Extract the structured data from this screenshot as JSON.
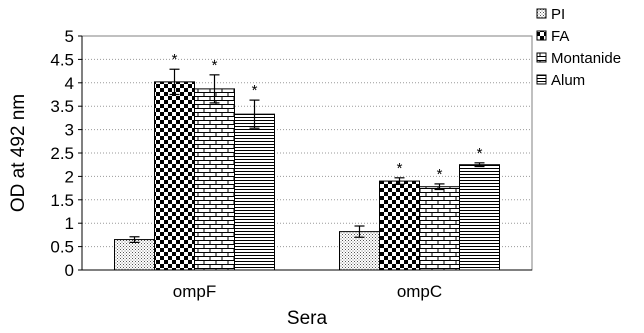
{
  "chart_data": {
    "type": "bar",
    "categories": [
      "ompF",
      "ompC"
    ],
    "series": [
      {
        "name": "PI",
        "values": [
          0.65,
          0.82
        ],
        "errors": [
          0.06,
          0.12
        ],
        "significant": [
          false,
          false
        ],
        "pattern": "dots"
      },
      {
        "name": "FA",
        "values": [
          4.02,
          1.9
        ],
        "errors": [
          0.27,
          0.07
        ],
        "significant": [
          true,
          true
        ],
        "pattern": "checker"
      },
      {
        "name": "Montanide",
        "values": [
          3.87,
          1.78
        ],
        "errors": [
          0.3,
          0.06
        ],
        "significant": [
          true,
          true
        ],
        "pattern": "bricks"
      },
      {
        "name": "Alum",
        "values": [
          3.33,
          2.25
        ],
        "errors": [
          0.3,
          0.04
        ],
        "significant": [
          true,
          true
        ],
        "pattern": "hlines"
      }
    ],
    "ylabel": "OD at 492 nm",
    "xlabel": "Sera",
    "ylim": [
      0,
      5
    ],
    "yticks": [
      "0",
      "0.5",
      "1",
      "1.5",
      "2",
      "2.5",
      "3",
      "3.5",
      "4",
      "4.5",
      "5"
    ],
    "significance_marker": "*",
    "grid": true,
    "legend_position": "top-right"
  }
}
